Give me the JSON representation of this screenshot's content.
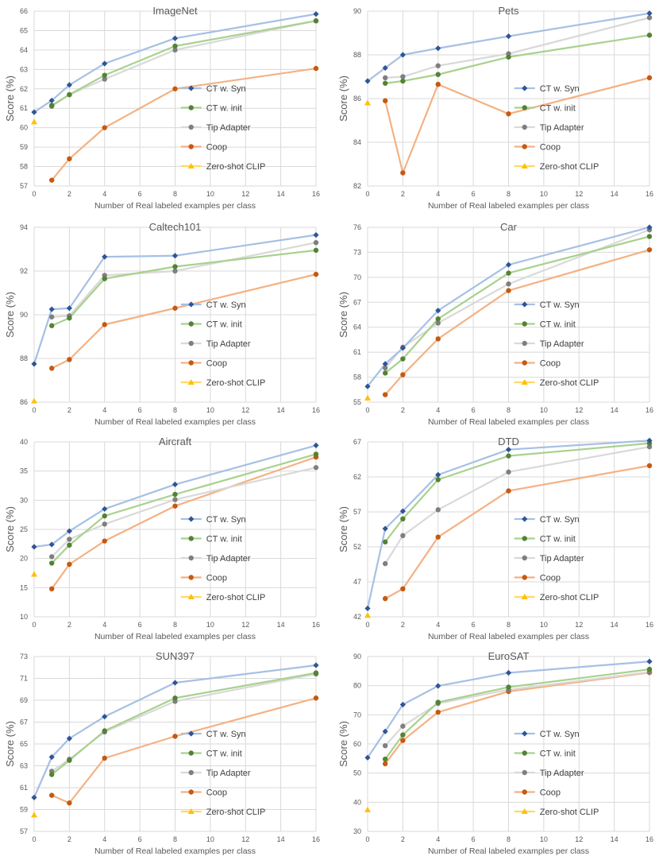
{
  "chart_data": [
    {
      "type": "line",
      "title": "ImageNet",
      "xlabel": "Number of Real labeled examples per class",
      "ylabel": "Score (%)",
      "xlim": [
        0,
        16
      ],
      "ylim": [
        57,
        66
      ],
      "xticks": [
        0,
        2,
        4,
        6,
        8,
        10,
        12,
        14,
        16
      ],
      "yticks": [
        57,
        58,
        59,
        60,
        61,
        62,
        63,
        64,
        65,
        66
      ],
      "series": [
        {
          "name": "CT w. Syn",
          "x": [
            0,
            1,
            2,
            4,
            8,
            16
          ],
          "values": [
            60.8,
            61.4,
            62.2,
            63.3,
            64.6,
            65.85
          ]
        },
        {
          "name": "CT w. init",
          "x": [
            1,
            2,
            4,
            8,
            16
          ],
          "values": [
            61.15,
            61.7,
            62.7,
            64.2,
            65.5
          ]
        },
        {
          "name": "Tip Adapter",
          "x": [
            1,
            2,
            4,
            8,
            16
          ],
          "values": [
            61.1,
            61.7,
            62.5,
            64.0,
            65.5
          ]
        },
        {
          "name": "Coop",
          "x": [
            1,
            2,
            4,
            8,
            16
          ],
          "values": [
            57.3,
            58.4,
            60.0,
            62.0,
            63.05
          ]
        },
        {
          "name": "Zero-shot CLIP",
          "x": [
            0
          ],
          "values": [
            60.3
          ]
        }
      ]
    },
    {
      "type": "line",
      "title": "Pets",
      "xlabel": "Number of Real labeled examples per class",
      "ylabel": "Score (%)",
      "xlim": [
        0,
        16
      ],
      "ylim": [
        82,
        90
      ],
      "xticks": [
        0,
        2,
        4,
        6,
        8,
        10,
        12,
        14,
        16
      ],
      "yticks": [
        82,
        84,
        86,
        88,
        90
      ],
      "series": [
        {
          "name": "CT w. Syn",
          "x": [
            0,
            1,
            2,
            4,
            8,
            16
          ],
          "values": [
            86.8,
            87.4,
            88.0,
            88.3,
            88.85,
            89.9
          ]
        },
        {
          "name": "CT w. init",
          "x": [
            1,
            2,
            4,
            8,
            16
          ],
          "values": [
            86.7,
            86.8,
            87.1,
            87.9,
            88.9
          ]
        },
        {
          "name": "Tip Adapter",
          "x": [
            1,
            2,
            4,
            8,
            16
          ],
          "values": [
            86.95,
            87.0,
            87.5,
            88.05,
            89.7
          ]
        },
        {
          "name": "Coop",
          "x": [
            1,
            2,
            4,
            8,
            16
          ],
          "values": [
            85.9,
            82.6,
            86.65,
            85.3,
            86.95
          ]
        },
        {
          "name": "Zero-shot CLIP",
          "x": [
            0
          ],
          "values": [
            85.8
          ]
        }
      ]
    },
    {
      "type": "line",
      "title": "Caltech101",
      "xlabel": "Number of Real labeled examples per class",
      "ylabel": "Score (%)",
      "xlim": [
        0,
        16
      ],
      "ylim": [
        86,
        94
      ],
      "xticks": [
        0,
        2,
        4,
        6,
        8,
        10,
        12,
        14,
        16
      ],
      "yticks": [
        86,
        88,
        90,
        92,
        94
      ],
      "series": [
        {
          "name": "CT w. Syn",
          "x": [
            0,
            1,
            2,
            4,
            8,
            16
          ],
          "values": [
            87.75,
            90.25,
            90.3,
            92.65,
            92.7,
            93.65
          ]
        },
        {
          "name": "CT w. init",
          "x": [
            1,
            2,
            4,
            8,
            16
          ],
          "values": [
            89.5,
            89.85,
            91.65,
            92.2,
            92.95
          ]
        },
        {
          "name": "Tip Adapter",
          "x": [
            1,
            2,
            4,
            8,
            16
          ],
          "values": [
            89.9,
            89.95,
            91.8,
            92.0,
            93.3
          ]
        },
        {
          "name": "Coop",
          "x": [
            1,
            2,
            4,
            8,
            16
          ],
          "values": [
            87.55,
            87.95,
            89.55,
            90.3,
            91.85
          ]
        },
        {
          "name": "Zero-shot CLIP",
          "x": [
            0
          ],
          "values": [
            86.05
          ]
        }
      ]
    },
    {
      "type": "line",
      "title": "Car",
      "xlabel": "Number of Real labeled examples per class",
      "ylabel": "Score (%)",
      "xlim": [
        0,
        16
      ],
      "ylim": [
        55,
        76
      ],
      "xticks": [
        0,
        2,
        4,
        6,
        8,
        10,
        12,
        14,
        16
      ],
      "yticks": [
        55,
        58,
        61,
        64,
        67,
        70,
        73,
        76
      ],
      "series": [
        {
          "name": "CT w. Syn",
          "x": [
            0,
            1,
            2,
            4,
            8,
            16
          ],
          "values": [
            56.9,
            59.6,
            61.5,
            66.0,
            71.5,
            76.0
          ]
        },
        {
          "name": "CT w. init",
          "x": [
            1,
            2,
            4,
            8,
            16
          ],
          "values": [
            58.5,
            60.2,
            65.0,
            70.5,
            74.9
          ]
        },
        {
          "name": "Tip Adapter",
          "x": [
            1,
            2,
            4,
            8,
            16
          ],
          "values": [
            59.1,
            61.6,
            64.5,
            69.2,
            75.7
          ]
        },
        {
          "name": "Coop",
          "x": [
            1,
            2,
            4,
            8,
            16
          ],
          "values": [
            55.9,
            58.3,
            62.6,
            68.4,
            73.3
          ]
        },
        {
          "name": "Zero-shot CLIP",
          "x": [
            0
          ],
          "values": [
            55.5
          ]
        }
      ]
    },
    {
      "type": "line",
      "title": "Aircraft",
      "xlabel": "Number of Real labeled examples per class",
      "ylabel": "Score (%)",
      "xlim": [
        0,
        16
      ],
      "ylim": [
        10,
        40
      ],
      "xticks": [
        0,
        2,
        4,
        6,
        8,
        10,
        12,
        14,
        16
      ],
      "yticks": [
        10,
        15,
        20,
        25,
        30,
        35,
        40
      ],
      "series": [
        {
          "name": "CT w. Syn",
          "x": [
            0,
            1,
            2,
            4,
            8,
            16
          ],
          "values": [
            22.0,
            22.4,
            24.7,
            28.5,
            32.7,
            39.4
          ]
        },
        {
          "name": "CT w. init",
          "x": [
            1,
            2,
            4,
            8,
            16
          ],
          "values": [
            19.2,
            22.3,
            27.3,
            31.0,
            37.9
          ]
        },
        {
          "name": "Tip Adapter",
          "x": [
            1,
            2,
            4,
            8,
            16
          ],
          "values": [
            20.3,
            23.3,
            25.9,
            30.1,
            35.6
          ]
        },
        {
          "name": "Coop",
          "x": [
            1,
            2,
            4,
            8,
            16
          ],
          "values": [
            14.8,
            19.0,
            23.0,
            29.0,
            37.4
          ]
        },
        {
          "name": "Zero-shot CLIP",
          "x": [
            0
          ],
          "values": [
            17.3
          ]
        }
      ]
    },
    {
      "type": "line",
      "title": "DTD",
      "xlabel": "Number of Real labeled examples per class",
      "ylabel": "Score (%)",
      "xlim": [
        0,
        16
      ],
      "ylim": [
        42,
        67
      ],
      "xticks": [
        0,
        2,
        4,
        6,
        8,
        10,
        12,
        14,
        16
      ],
      "yticks": [
        42,
        47,
        52,
        57,
        62,
        67
      ],
      "series": [
        {
          "name": "CT w. Syn",
          "x": [
            0,
            1,
            2,
            4,
            8,
            16
          ],
          "values": [
            43.2,
            54.6,
            57.1,
            62.3,
            65.9,
            67.2
          ]
        },
        {
          "name": "CT w. init",
          "x": [
            1,
            2,
            4,
            8,
            16
          ],
          "values": [
            52.7,
            56.0,
            61.6,
            65.0,
            66.8
          ]
        },
        {
          "name": "Tip Adapter",
          "x": [
            1,
            2,
            4,
            8,
            16
          ],
          "values": [
            49.6,
            53.6,
            57.3,
            62.7,
            66.3
          ]
        },
        {
          "name": "Coop",
          "x": [
            1,
            2,
            4,
            8,
            16
          ],
          "values": [
            44.6,
            46.0,
            53.4,
            60.0,
            63.6
          ]
        },
        {
          "name": "Zero-shot CLIP",
          "x": [
            0
          ],
          "values": [
            42.2
          ]
        }
      ]
    },
    {
      "type": "line",
      "title": "SUN397",
      "xlabel": "Number of Real labeled examples per class",
      "ylabel": "Score (%)",
      "xlim": [
        0,
        16
      ],
      "ylim": [
        57,
        73
      ],
      "xticks": [
        0,
        2,
        4,
        6,
        8,
        10,
        12,
        14,
        16
      ],
      "yticks": [
        57,
        59,
        61,
        63,
        65,
        67,
        69,
        71,
        73
      ],
      "series": [
        {
          "name": "CT w. Syn",
          "x": [
            0,
            1,
            2,
            4,
            8,
            16
          ],
          "values": [
            60.1,
            63.8,
            65.5,
            67.5,
            70.6,
            72.2
          ]
        },
        {
          "name": "CT w. init",
          "x": [
            1,
            2,
            4,
            8,
            16
          ],
          "values": [
            62.2,
            63.5,
            66.2,
            69.2,
            71.5
          ]
        },
        {
          "name": "Tip Adapter",
          "x": [
            1,
            2,
            4,
            8,
            16
          ],
          "values": [
            62.5,
            63.6,
            66.1,
            68.9,
            71.4
          ]
        },
        {
          "name": "Coop",
          "x": [
            1,
            2,
            4,
            8,
            16
          ],
          "values": [
            60.3,
            59.6,
            63.7,
            65.7,
            69.2
          ]
        },
        {
          "name": "Zero-shot CLIP",
          "x": [
            0
          ],
          "values": [
            58.5
          ]
        }
      ]
    },
    {
      "type": "line",
      "title": "EuroSAT",
      "xlabel": "Number of Real labeled examples per class",
      "ylabel": "Score (%)",
      "xlim": [
        0,
        16
      ],
      "ylim": [
        30,
        90
      ],
      "xticks": [
        0,
        2,
        4,
        6,
        8,
        10,
        12,
        14,
        16
      ],
      "yticks": [
        30,
        40,
        50,
        60,
        70,
        80,
        90
      ],
      "series": [
        {
          "name": "CT w. Syn",
          "x": [
            0,
            1,
            2,
            4,
            8,
            16
          ],
          "values": [
            55.3,
            64.3,
            73.5,
            79.9,
            84.4,
            88.3
          ]
        },
        {
          "name": "CT w. init",
          "x": [
            1,
            2,
            4,
            8,
            16
          ],
          "values": [
            54.8,
            63.1,
            74.3,
            79.5,
            85.6
          ]
        },
        {
          "name": "Tip Adapter",
          "x": [
            1,
            2,
            4,
            8,
            16
          ],
          "values": [
            59.4,
            66.1,
            73.9,
            78.6,
            84.7
          ]
        },
        {
          "name": "Coop",
          "x": [
            1,
            2,
            4,
            8,
            16
          ],
          "values": [
            53.2,
            61.2,
            70.9,
            78.0,
            84.5
          ]
        },
        {
          "name": "Zero-shot CLIP",
          "x": [
            0
          ],
          "values": [
            37.4
          ]
        }
      ]
    }
  ],
  "legend": {
    "entries": [
      "CT w. Syn",
      "CT w. init",
      "Tip Adapter",
      "Coop",
      "Zero-shot CLIP"
    ],
    "placement": "bottom-right"
  },
  "series_style": {
    "CT w. Syn": {
      "line": "#a6c0e4",
      "marker": "#2f5597",
      "shape": "diamond"
    },
    "CT w. init": {
      "line": "#a9d18e",
      "marker": "#548235",
      "shape": "circle"
    },
    "Tip Adapter": {
      "line": "#d9d9d9",
      "marker": "#7f7f7f",
      "shape": "circle"
    },
    "Coop": {
      "line": "#f4b183",
      "marker": "#c55a11",
      "shape": "circle"
    },
    "Zero-shot CLIP": {
      "line": "#ffd966",
      "marker": "#ffc000",
      "shape": "triangle"
    }
  }
}
